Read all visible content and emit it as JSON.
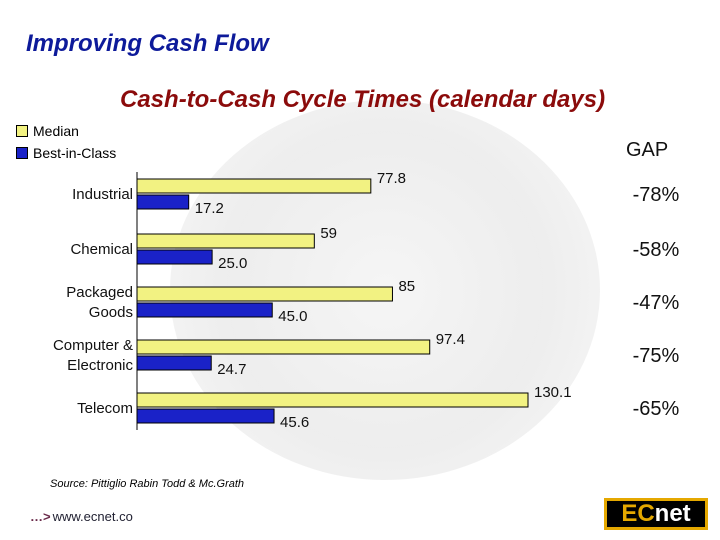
{
  "title": "Improving Cash Flow",
  "chart_data": {
    "type": "bar",
    "orientation": "horizontal",
    "title": "Cash-to-Cash Cycle Times (calendar days)",
    "categories": [
      "Industrial",
      "Chemical",
      "Packaged Goods",
      "Computer & Electronic",
      "Telecom"
    ],
    "category_lines": [
      [
        "Industrial"
      ],
      [
        "Chemical"
      ],
      [
        "Packaged",
        "Goods"
      ],
      [
        "Computer &",
        "Electronic"
      ],
      [
        "Telecom"
      ]
    ],
    "series": [
      {
        "name": "Median",
        "color": "#f2f282",
        "values": [
          77.8,
          59,
          85,
          97.4,
          130.1
        ],
        "labels": [
          "77.8",
          "59",
          "85",
          "97.4",
          "130.1"
        ]
      },
      {
        "name": "Best-in-Class",
        "color": "#1a22c8",
        "values": [
          17.2,
          25.0,
          45.0,
          24.7,
          45.6
        ],
        "labels": [
          "17.2",
          "25.0",
          "45.0",
          "24.7",
          "45.6"
        ]
      }
    ],
    "gap_header": "GAP",
    "gap": [
      "-78%",
      "-58%",
      "-47%",
      "-75%",
      "-65%"
    ],
    "xlim": [
      0,
      130.1
    ],
    "legend_position": "top-left"
  },
  "source": "Source:  Pittiglio Rabin Todd & Mc.Grath",
  "footer": {
    "url": "www.ecnet.co",
    "logo_ec": "EC",
    "logo_net": "net"
  },
  "colors": {
    "title": "#0d1a9a",
    "subtitle": "#8b0b0b"
  }
}
